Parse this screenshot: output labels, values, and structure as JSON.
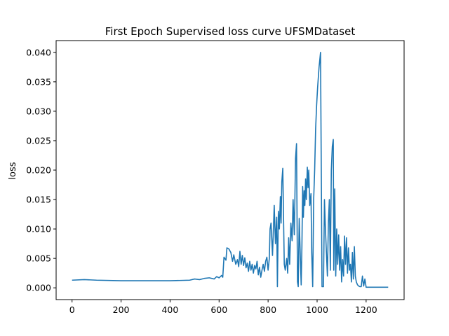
{
  "chart_data": {
    "type": "line",
    "title": "First Epoch Supervised loss curve UFSMDataset",
    "xlabel": "",
    "ylabel": "loss",
    "xlim": [
      -65,
      1355
    ],
    "ylim": [
      -0.002,
      0.042
    ],
    "x_ticks": [
      0,
      200,
      400,
      600,
      800,
      1000,
      1200
    ],
    "y_ticks": [
      0.0,
      0.005,
      0.01,
      0.015,
      0.02,
      0.025,
      0.03,
      0.035,
      0.04
    ],
    "y_tick_labels": [
      "0.000",
      "0.005",
      "0.010",
      "0.015",
      "0.020",
      "0.025",
      "0.030",
      "0.035",
      "0.040"
    ],
    "grid": false,
    "line_color": "#1f77b4",
    "series": [
      {
        "x": [
          0,
          50,
          100,
          200,
          300,
          400,
          480,
          500,
          520,
          540,
          560,
          580,
          590,
          600,
          610,
          615,
          620,
          628,
          632,
          640,
          648,
          655,
          660,
          668,
          675,
          680,
          685,
          690,
          695,
          700,
          705,
          710,
          715,
          720,
          725,
          730,
          735,
          740,
          745,
          750,
          755,
          760,
          765,
          770,
          775,
          780,
          785,
          790,
          795,
          800,
          805,
          808,
          812,
          818,
          825,
          830,
          835,
          838,
          842,
          846,
          850,
          853,
          856,
          860,
          866,
          870,
          876,
          880,
          884,
          888,
          893,
          898,
          902,
          907,
          912,
          916,
          920,
          923,
          927,
          931,
          935,
          938,
          941,
          944,
          947,
          950,
          953,
          956,
          960,
          963,
          966,
          970,
          975,
          978,
          982,
          986,
          990,
          994,
          998,
          1002,
          1008,
          1014,
          1020,
          1026,
          1030,
          1034,
          1038,
          1042,
          1046,
          1050,
          1054,
          1058,
          1062,
          1066,
          1068,
          1072,
          1076,
          1080,
          1084,
          1088,
          1092,
          1096,
          1100,
          1104,
          1108,
          1112,
          1116,
          1120,
          1124,
          1128,
          1132,
          1136,
          1140,
          1144,
          1148,
          1152,
          1156,
          1160,
          1165,
          1170,
          1175,
          1180,
          1185,
          1190,
          1195,
          1200,
          1210,
          1220,
          1240,
          1260,
          1290
        ],
        "values": [
          0.0013,
          0.0014,
          0.0013,
          0.0012,
          0.0012,
          0.0012,
          0.0013,
          0.0015,
          0.0014,
          0.0016,
          0.0017,
          0.0015,
          0.0019,
          0.0017,
          0.0021,
          0.0018,
          0.0052,
          0.0047,
          0.0068,
          0.0066,
          0.006,
          0.0045,
          0.0056,
          0.004,
          0.0048,
          0.0036,
          0.0062,
          0.004,
          0.0055,
          0.0038,
          0.0051,
          0.0034,
          0.0042,
          0.0028,
          0.0045,
          0.003,
          0.004,
          0.0025,
          0.0038,
          0.0032,
          0.0045,
          0.0022,
          0.0035,
          0.0018,
          0.003,
          0.004,
          0.0028,
          0.0045,
          0.0052,
          0.003,
          0.005,
          0.01,
          0.011,
          0.0055,
          0.014,
          0.0075,
          0.012,
          0.0002,
          0.013,
          0.01,
          0.0155,
          0.011,
          0.018,
          0.0203,
          0.004,
          0.003,
          0.005,
          0.0025,
          0.0085,
          0.004,
          0.011,
          0.008,
          0.015,
          0.009,
          0.022,
          0.0245,
          0.001,
          0.0002,
          0.0118,
          0.006,
          0.0005,
          0.007,
          0.0172,
          0.012,
          0.0165,
          0.014,
          0.0185,
          0.015,
          0.0205,
          0.017,
          0.02,
          0.014,
          0.016,
          0.006,
          0.0002,
          0.015,
          0.02,
          0.027,
          0.031,
          0.034,
          0.0375,
          0.04,
          0.0002,
          0.0002,
          0.015,
          0.01,
          0.006,
          0.002,
          0.011,
          0.015,
          0.003,
          0.02,
          0.024,
          0.0252,
          0.003,
          0.0168,
          0.002,
          0.01,
          0.004,
          0.009,
          0.003,
          0.007,
          0.001,
          0.0048,
          0.002,
          0.0088,
          0.004,
          0.0085,
          0.0025,
          0.0068,
          0.003,
          0.004,
          0.001,
          0.006,
          0.0015,
          0.007,
          0.002,
          0.001,
          0.0005,
          0.0003,
          0.0002,
          0.0002,
          0.002,
          0.0003,
          0.0015,
          0.0001,
          0.0001,
          0.0001,
          0.0001,
          0.0001,
          0.0001
        ]
      }
    ]
  }
}
